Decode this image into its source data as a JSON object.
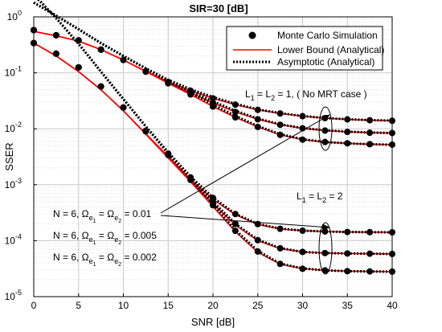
{
  "chart_data": {
    "type": "line",
    "title": "SIR=30 [dB]",
    "xlabel": "SNR [dB]",
    "ylabel": "SSER",
    "xlim": [
      0,
      40
    ],
    "ylim": [
      1e-05,
      1
    ],
    "yscale": "log",
    "grid": true,
    "legend_position": "top-right",
    "xticks": [
      "0",
      "5",
      "10",
      "15",
      "20",
      "25",
      "30",
      "35",
      "40"
    ],
    "yticks": [
      {
        "base": "10",
        "exp": "0",
        "value": 1
      },
      {
        "base": "10",
        "exp": "-1",
        "value": 0.1
      },
      {
        "base": "10",
        "exp": "-2",
        "value": 0.01
      },
      {
        "base": "10",
        "exp": "-3",
        "value": 0.001
      },
      {
        "base": "10",
        "exp": "-4",
        "value": 0.0001
      },
      {
        "base": "10",
        "exp": "-5",
        "value": 1e-05
      }
    ],
    "legend": [
      {
        "label": "Monte Carlo Simulation",
        "style": "marker",
        "color": "#000000"
      },
      {
        "label": "Lower Bound (Analytical)",
        "style": "solid",
        "color": "#ff0000"
      },
      {
        "label": "Asymptotic (Analytical)",
        "style": "dotted",
        "color": "#000000"
      }
    ],
    "series_style": {
      "mc_color": "#000000",
      "lb_color": "#ff0000",
      "asym_color": "#000000"
    },
    "series": [
      {
        "group": "L1 = L2 = 1",
        "lb": {
          "x": [
            0,
            2.5,
            5,
            7.5,
            10,
            12.5,
            15,
            17.5,
            20,
            22.5,
            25,
            27.5,
            30,
            32.5,
            35,
            37.5,
            40
          ],
          "y": [
            0.55,
            0.46,
            0.37,
            0.26,
            0.17,
            0.107,
            0.069,
            0.048,
            0.035,
            0.027,
            0.0218,
            0.0188,
            0.0168,
            0.0155,
            0.0147,
            0.0142,
            0.0139
          ]
        },
        "mc": {
          "x": [
            0,
            2.5,
            5,
            7.5,
            10,
            12.5,
            15,
            17.5,
            20,
            22.5,
            25,
            27.5,
            30,
            32.5,
            35,
            37.5,
            40
          ],
          "y": [
            0.58,
            0.47,
            0.38,
            0.26,
            0.17,
            0.107,
            0.069,
            0.048,
            0.035,
            0.027,
            0.0218,
            0.0188,
            0.0168,
            0.0155,
            0.0147,
            0.0142,
            0.0139
          ]
        },
        "asym": {
          "x": [
            0,
            2.5,
            5,
            7.5,
            10,
            12.5,
            15,
            17.5,
            20,
            22.5,
            25,
            27.5,
            30,
            32.5,
            35,
            37.5,
            40
          ],
          "y": [
            1.8,
            1.05,
            0.6,
            0.34,
            0.2,
            0.12,
            0.075,
            0.051,
            0.037,
            0.028,
            0.0222,
            0.019,
            0.0169,
            0.0156,
            0.0148,
            0.0143,
            0.014
          ]
        }
      },
      {
        "group": "L1 = L2 = 1",
        "lb": {
          "x": [
            0,
            2.5,
            5,
            7.5,
            10,
            12.5,
            15,
            17.5,
            20,
            22.5,
            25,
            27.5,
            30,
            32.5,
            35,
            37.5,
            40
          ],
          "y": [
            0.55,
            0.46,
            0.37,
            0.26,
            0.17,
            0.106,
            0.066,
            0.044,
            0.029,
            0.02,
            0.0148,
            0.0118,
            0.0102,
            0.0093,
            0.0088,
            0.0085,
            0.0084
          ]
        },
        "mc": {
          "x": [
            0,
            2.5,
            5,
            7.5,
            10,
            12.5,
            15,
            17.5,
            20,
            22.5,
            25,
            27.5,
            30,
            32.5,
            35,
            37.5,
            40
          ],
          "y": [
            0.58,
            0.47,
            0.38,
            0.26,
            0.17,
            0.106,
            0.066,
            0.044,
            0.029,
            0.02,
            0.0148,
            0.0118,
            0.0102,
            0.0093,
            0.0088,
            0.0085,
            0.0084
          ]
        },
        "asym": {
          "x": [
            0,
            2.5,
            5,
            7.5,
            10,
            12.5,
            15,
            17.5,
            20,
            22.5,
            25,
            27.5,
            30,
            32.5,
            35,
            37.5,
            40
          ],
          "y": [
            1.8,
            1.05,
            0.6,
            0.34,
            0.2,
            0.12,
            0.072,
            0.047,
            0.031,
            0.021,
            0.0152,
            0.012,
            0.0103,
            0.0094,
            0.0089,
            0.0086,
            0.0084
          ]
        }
      },
      {
        "group": "L1 = L2 = 1",
        "lb": {
          "x": [
            0,
            2.5,
            5,
            7.5,
            10,
            12.5,
            15,
            17.5,
            20,
            22.5,
            25,
            27.5,
            30,
            32.5,
            35,
            37.5,
            40
          ],
          "y": [
            0.55,
            0.46,
            0.37,
            0.26,
            0.17,
            0.105,
            0.065,
            0.041,
            0.025,
            0.016,
            0.0108,
            0.0078,
            0.0064,
            0.0058,
            0.0055,
            0.0053,
            0.0052
          ]
        },
        "mc": {
          "x": [
            0,
            2.5,
            5,
            7.5,
            10,
            12.5,
            15,
            17.5,
            20,
            22.5,
            25,
            27.5,
            30,
            32.5,
            35,
            37.5,
            40
          ],
          "y": [
            0.58,
            0.47,
            0.38,
            0.26,
            0.17,
            0.105,
            0.065,
            0.041,
            0.025,
            0.016,
            0.0108,
            0.0078,
            0.0064,
            0.0058,
            0.0055,
            0.0053,
            0.0052
          ]
        },
        "asym": {
          "x": [
            0,
            2.5,
            5,
            7.5,
            10,
            12.5,
            15,
            17.5,
            20,
            22.5,
            25,
            27.5,
            30,
            32.5,
            35,
            37.5,
            40
          ],
          "y": [
            1.8,
            1.05,
            0.6,
            0.34,
            0.2,
            0.12,
            0.07,
            0.044,
            0.027,
            0.017,
            0.0112,
            0.008,
            0.0065,
            0.0058,
            0.0055,
            0.0053,
            0.0052
          ]
        }
      },
      {
        "group": "L1 = L2 = 2",
        "lb": {
          "x": [
            0,
            2.5,
            5,
            7.5,
            10,
            12.5,
            15,
            17.5,
            20,
            22.5,
            25,
            27.5,
            30,
            32.5,
            35,
            37.5,
            40
          ],
          "y": [
            0.34,
            0.2,
            0.105,
            0.05,
            0.021,
            0.0082,
            0.0032,
            0.00125,
            0.00055,
            0.00029,
            0.000195,
            0.000162,
            0.000151,
            0.000146,
            0.000143,
            0.000142,
            0.000141
          ]
        },
        "mc": {
          "x": [
            0,
            2.5,
            5,
            7.5,
            10,
            12.5,
            15,
            17.5,
            20,
            22.5,
            25,
            27.5,
            30,
            32.5,
            35,
            37.5,
            40
          ],
          "y": [
            0.34,
            0.22,
            0.125,
            0.057,
            0.024,
            0.0092,
            0.0036,
            0.00135,
            0.00058,
            0.0003,
            0.000198,
            0.000163,
            0.000151,
            0.000146,
            0.000143,
            0.000142,
            0.000141
          ]
        },
        "asym": {
          "x": [
            0,
            2.5,
            5,
            7.5,
            10,
            12.5,
            15,
            17.5,
            20,
            22.5,
            25,
            27.5,
            30,
            32.5,
            35,
            37.5,
            40
          ],
          "y": [
            2.5,
            0.95,
            0.33,
            0.105,
            0.034,
            0.011,
            0.0038,
            0.0014,
            0.00059,
            0.0003,
            0.0002,
            0.000164,
            0.000151,
            0.000146,
            0.000143,
            0.000142,
            0.000141
          ]
        }
      },
      {
        "group": "L1 = L2 = 2",
        "lb": {
          "x": [
            0,
            2.5,
            5,
            7.5,
            10,
            12.5,
            15,
            17.5,
            20,
            22.5,
            25,
            27.5,
            30,
            32.5,
            35,
            37.5,
            40
          ],
          "y": [
            0.34,
            0.2,
            0.105,
            0.05,
            0.021,
            0.0081,
            0.0031,
            0.00118,
            0.00046,
            0.00019,
            0.0001,
            7.2e-05,
            6.3e-05,
            6e-05,
            5.9e-05,
            5.85e-05,
            5.8e-05
          ]
        },
        "mc": {
          "x": [
            0,
            2.5,
            5,
            7.5,
            10,
            12.5,
            15,
            17.5,
            20,
            22.5,
            25,
            27.5,
            30,
            32.5,
            35,
            37.5,
            40
          ],
          "y": [
            0.34,
            0.22,
            0.125,
            0.057,
            0.024,
            0.0091,
            0.0035,
            0.00128,
            0.00049,
            0.0002,
            0.000102,
            7.3e-05,
            6.3e-05,
            6e-05,
            5.9e-05,
            5.85e-05,
            5.8e-05
          ]
        },
        "asym": {
          "x": [
            0,
            2.5,
            5,
            7.5,
            10,
            12.5,
            15,
            17.5,
            20,
            22.5,
            25,
            27.5,
            30,
            32.5,
            35,
            37.5,
            40
          ],
          "y": [
            2.5,
            0.95,
            0.33,
            0.105,
            0.034,
            0.011,
            0.0037,
            0.0013,
            0.0005,
            0.0002,
            0.000104,
            7.4e-05,
            6.3e-05,
            6e-05,
            5.9e-05,
            5.85e-05,
            5.8e-05
          ]
        }
      },
      {
        "group": "L1 = L2 = 2",
        "lb": {
          "x": [
            0,
            2.5,
            5,
            7.5,
            10,
            12.5,
            15,
            17.5,
            20,
            22.5,
            25,
            27.5,
            30,
            32.5,
            35,
            37.5,
            40
          ],
          "y": [
            0.34,
            0.2,
            0.105,
            0.05,
            0.021,
            0.008,
            0.003,
            0.00113,
            0.00041,
            0.000145,
            6.2e-05,
            3.8e-05,
            3.15e-05,
            2.95e-05,
            2.85e-05,
            2.82e-05,
            2.8e-05
          ]
        },
        "mc": {
          "x": [
            0,
            2.5,
            5,
            7.5,
            10,
            12.5,
            15,
            17.5,
            20,
            22.5,
            25,
            27.5,
            30,
            32.5,
            35,
            37.5,
            40
          ],
          "y": [
            0.34,
            0.22,
            0.125,
            0.057,
            0.024,
            0.009,
            0.0034,
            0.00122,
            0.00043,
            0.00015,
            6.4e-05,
            3.85e-05,
            3.15e-05,
            2.95e-05,
            2.85e-05,
            2.82e-05,
            2.8e-05
          ]
        },
        "asym": {
          "x": [
            0,
            2.5,
            5,
            7.5,
            10,
            12.5,
            15,
            17.5,
            20,
            22.5,
            25,
            27.5,
            30,
            32.5,
            35,
            37.5,
            40
          ],
          "y": [
            2.5,
            0.95,
            0.33,
            0.105,
            0.034,
            0.011,
            0.0036,
            0.00125,
            0.00045,
            0.000155,
            6.6e-05,
            3.9e-05,
            3.2e-05,
            2.95e-05,
            2.85e-05,
            2.82e-05,
            2.8e-05
          ]
        }
      }
    ],
    "annotations": {
      "label_l1": {
        "pre": "L",
        "s1": "1",
        "mid": " = L",
        "s2": "2",
        "post": " = 1, ( No MRT case )"
      },
      "label_l2": {
        "pre": "L",
        "s1": "1",
        "mid": " = L",
        "s2": "2",
        "post": " = 2"
      },
      "n_labels": [
        {
          "pre": "N = 6, Ω",
          "sub1": "e",
          "sub1b": "1",
          "mid": " = Ω",
          "sub2": "e",
          "sub2b": "2",
          "post": " = 0.01"
        },
        {
          "pre": "N = 6, Ω",
          "sub1": "e",
          "sub1b": "1",
          "mid": " = Ω",
          "sub2": "e",
          "sub2b": "2",
          "post": " = 0.005"
        },
        {
          "pre": "N = 6, Ω",
          "sub1": "e",
          "sub1b": "1",
          "mid": " = Ω",
          "sub2": "e",
          "sub2b": "2",
          "post": " = 0.002"
        }
      ]
    }
  }
}
